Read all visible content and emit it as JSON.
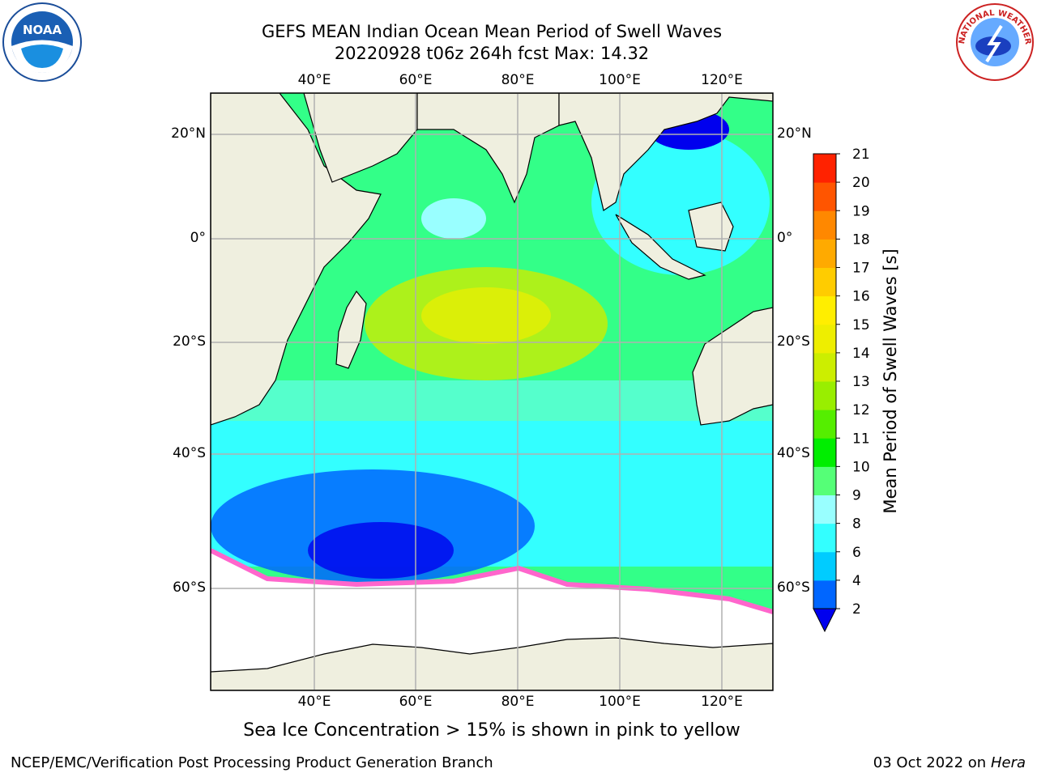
{
  "header": {
    "title_line1": "GEFS MEAN Indian Ocean Mean Period of Swell Waves",
    "title_line2": "20220928 t06z 264h fcst   Max: 14.32"
  },
  "logos": {
    "left": {
      "text": "NOAA",
      "icon": "noaa-logo-icon"
    },
    "right": {
      "text": "NATIONAL WEATHER SERVICE",
      "icon": "nws-logo-icon"
    }
  },
  "map": {
    "lon_labels": [
      "40°E",
      "60°E",
      "80°E",
      "100°E",
      "120°E"
    ],
    "lat_labels": [
      "20°N",
      "0°",
      "20°S",
      "40°S",
      "60°S"
    ],
    "land_color": "#efefdf",
    "gridline_color": "#b0b0b0"
  },
  "colorbar": {
    "label": "Mean Period of Swell Waves [s]",
    "ticks": [
      "2",
      "4",
      "6",
      "8",
      "9",
      "10",
      "11",
      "12",
      "13",
      "14",
      "15",
      "16",
      "17",
      "18",
      "19",
      "20",
      "21"
    ],
    "colors": [
      "#0066ff",
      "#00ccff",
      "#33ffff",
      "#99ffff",
      "#55ff77",
      "#00ee00",
      "#55ee00",
      "#99ee00",
      "#ccee00",
      "#eeee00",
      "#ffee00",
      "#ffcc00",
      "#ffaa00",
      "#ff8800",
      "#ff5500",
      "#ff2200"
    ],
    "under_color": "#0000ee",
    "over_color": "#ff0000"
  },
  "footer": {
    "note": "Sea Ice Concentration > 15% is shown in pink to yellow",
    "credit_left": "NCEP/EMC/Verification Post Processing Product Generation Branch",
    "credit_right_date": "03 Oct 2022 on ",
    "credit_right_host": "Hera"
  }
}
